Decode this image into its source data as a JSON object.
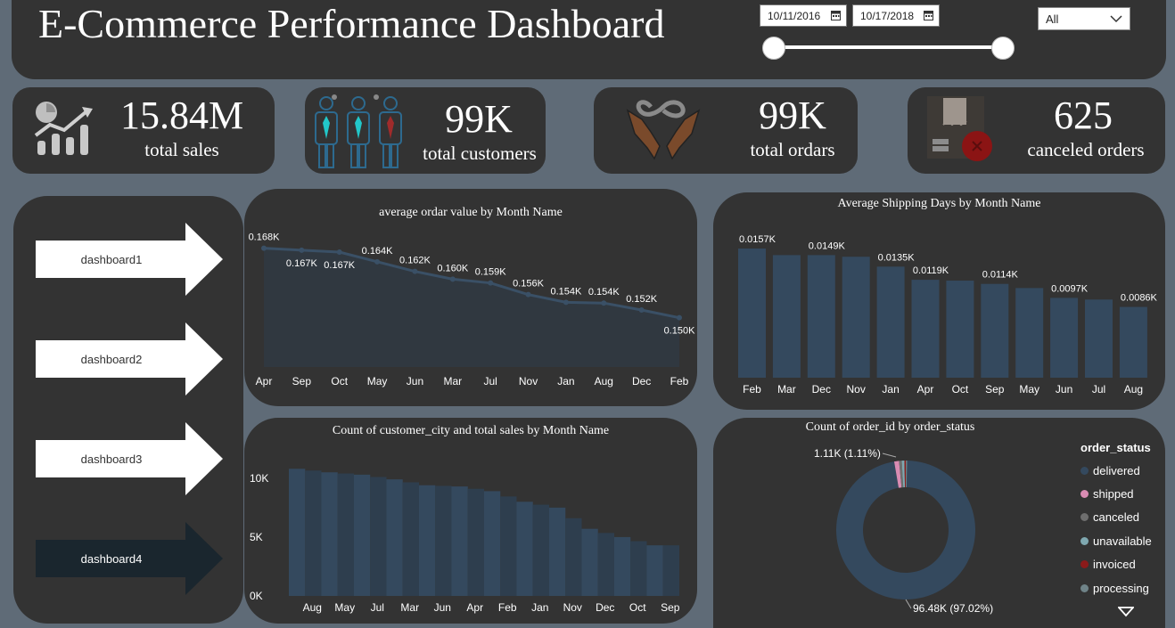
{
  "header": {
    "title": "E-Commerce Performance Dashboard",
    "date_start": "10/11/2016",
    "date_end": "10/17/2018",
    "slicer_value": "All"
  },
  "kpis": [
    {
      "value": "15.84M",
      "label": "total sales",
      "icon": "growth-chart-icon"
    },
    {
      "value": "99K",
      "label": "total customers",
      "icon": "customers-icon"
    },
    {
      "value": "99K",
      "label": "total ordars",
      "icon": "hands-infinity-icon"
    },
    {
      "value": "625",
      "label": "canceled orders",
      "icon": "canceled-box-icon"
    }
  ],
  "nav": {
    "items": [
      "dashboard1",
      "dashboard2",
      "dashboard3",
      "dashboard4"
    ],
    "active_index": 3
  },
  "colors": {
    "background": "#5f6b77",
    "panel": "#333333",
    "series": "#34495e",
    "line": "#3a5066"
  },
  "chart_data": [
    {
      "type": "area",
      "title": "average ordar value by Month Name",
      "categories": [
        "Apr",
        "Sep",
        "Oct",
        "May",
        "Jun",
        "Mar",
        "Jul",
        "Nov",
        "Jan",
        "Aug",
        "Dec",
        "Feb"
      ],
      "values": [
        0.168,
        0.1675,
        0.167,
        0.1645,
        0.162,
        0.16,
        0.159,
        0.156,
        0.154,
        0.1538,
        0.152,
        0.15
      ],
      "labels": [
        "0.168K",
        "0.167K",
        "0.167K",
        "0.164K",
        "0.162K",
        "0.160K",
        "0.159K",
        "0.156K",
        "0.154K",
        "0.154K",
        "0.152K",
        "0.150K"
      ],
      "ylim": [
        0.14,
        0.17
      ]
    },
    {
      "type": "bar",
      "title": "Average Shipping Days by Month Name",
      "categories": [
        "Feb",
        "Mar",
        "Dec",
        "Nov",
        "Jan",
        "Apr",
        "Oct",
        "Sep",
        "May",
        "Jun",
        "Jul",
        "Aug"
      ],
      "values": [
        0.0157,
        0.0149,
        0.0149,
        0.0147,
        0.0135,
        0.0119,
        0.0118,
        0.0114,
        0.0109,
        0.0097,
        0.0095,
        0.0086
      ],
      "labels": [
        "0.0157K",
        "",
        "0.0149K",
        "",
        "0.0135K",
        "0.0119K",
        "",
        "0.0114K",
        "",
        "0.0097K",
        "",
        "0.0086K"
      ],
      "ylim": [
        0,
        0.018
      ]
    },
    {
      "type": "area",
      "title": "Count of customer_city and total sales by Month Name",
      "categories": [
        "Aug",
        "May",
        "Jul",
        "Mar",
        "Jun",
        "Apr",
        "Feb",
        "Jan",
        "Nov",
        "Dec",
        "Oct",
        "Sep"
      ],
      "values": [
        10800,
        10500,
        10300,
        9900,
        9400,
        9300,
        8900,
        8000,
        7500,
        5700,
        5000,
        4300
      ],
      "yticks": [
        "0K",
        "5K",
        "10K"
      ],
      "ylim": [
        0,
        11500
      ]
    },
    {
      "type": "pie",
      "title": "Count of order_id by order_status",
      "legend_title": "order_status",
      "slices": [
        {
          "name": "delivered",
          "value": 96.48,
          "color": "#34495e"
        },
        {
          "name": "shipped",
          "value": 1.11,
          "color": "#d98cb3"
        },
        {
          "name": "canceled",
          "value": 0.63,
          "color": "#6e6e6e"
        },
        {
          "name": "unavailable",
          "value": 0.61,
          "color": "#7fa8b0"
        },
        {
          "name": "invoiced",
          "value": 0.32,
          "color": "#8b1a1a"
        },
        {
          "name": "processing",
          "value": 0.3,
          "color": "#6f8388"
        }
      ],
      "label_small": "1.11K (1.11%)",
      "label_large": "96.48K (97.02%)"
    }
  ]
}
